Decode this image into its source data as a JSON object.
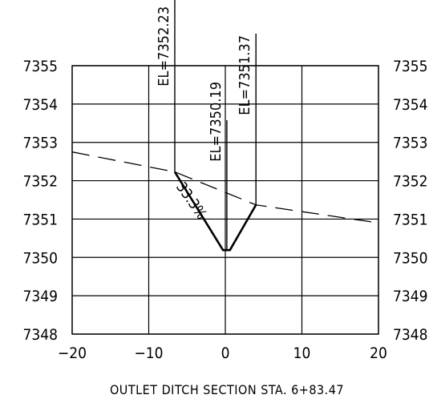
{
  "chart_data": {
    "type": "line",
    "caption": "OUTLET DITCH SECTION STA. 6+83.47",
    "x_ticks": [
      "−20",
      "−10",
      "0",
      "10",
      "20"
    ],
    "y_ticks_left": [
      "7355",
      "7354",
      "7353",
      "7352",
      "7351",
      "7350",
      "7349",
      "7348"
    ],
    "y_ticks_right": [
      "7355",
      "7354",
      "7353",
      "7352",
      "7351",
      "7350",
      "7349",
      "7348"
    ],
    "xlim": [
      -20,
      20
    ],
    "ylim": [
      7348,
      7355
    ],
    "grid": true,
    "ground_profile": {
      "style": "dashed",
      "x": [
        -20,
        -6.6,
        4,
        20
      ],
      "y": [
        7352.75,
        7352.23,
        7351.37,
        7350.9
      ]
    },
    "ditch_section": {
      "style": "solid",
      "x": [
        -6.6,
        -0.3,
        0.6,
        4
      ],
      "y": [
        7352.23,
        7350.19,
        7350.19,
        7351.37
      ]
    },
    "annotations": [
      {
        "text": "EL=7352.23",
        "x": -6.6,
        "y": 7352.23
      },
      {
        "text": "EL=7350.19",
        "x": 0.2,
        "y": 7350.19
      },
      {
        "text": "EL=7351.37",
        "x": 4,
        "y": 7351.37
      },
      {
        "text": "33.3%",
        "x": -4.3,
        "y": 7351.2
      }
    ]
  }
}
